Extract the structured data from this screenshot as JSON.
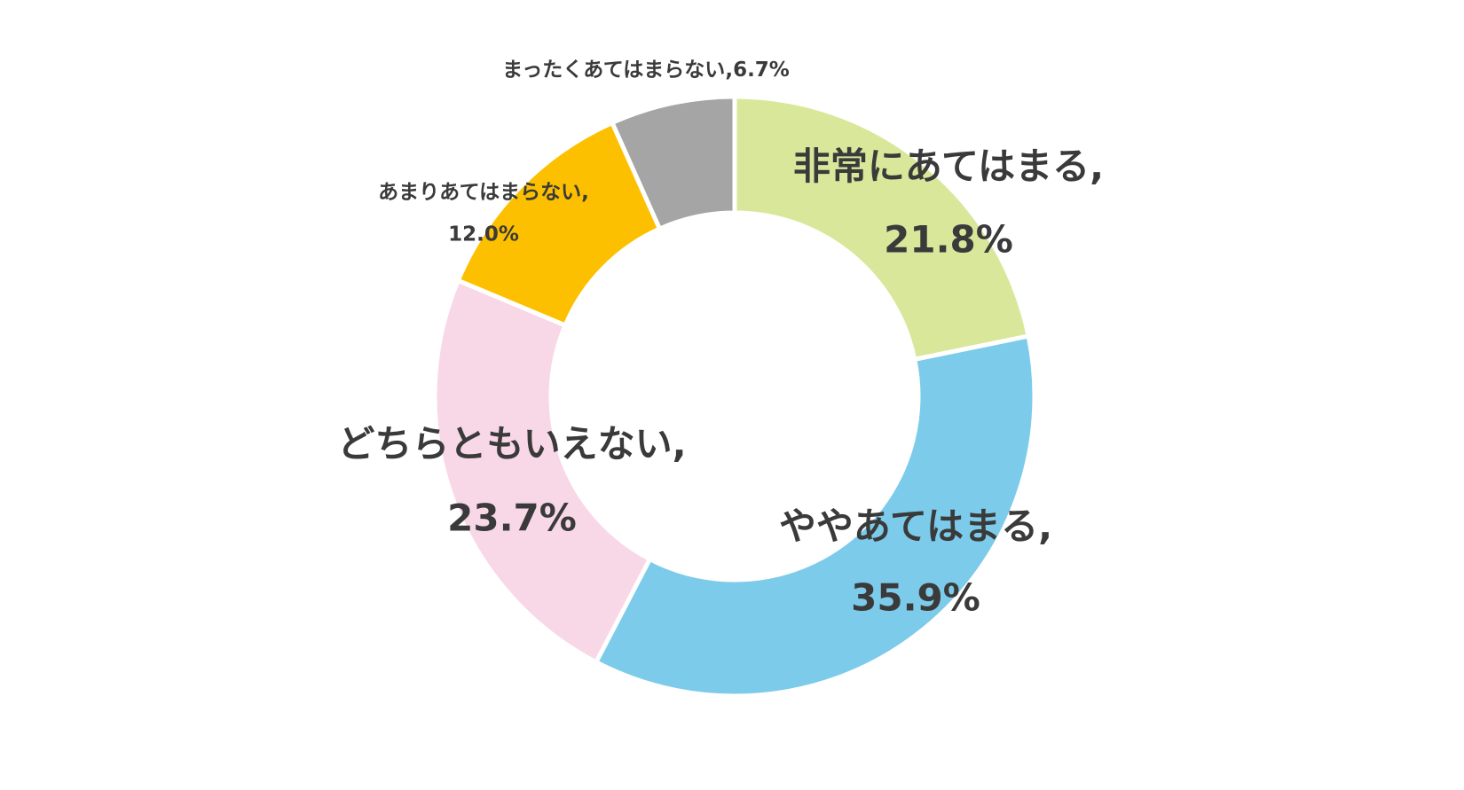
{
  "chart_data": {
    "type": "donut",
    "categories": [
      "非常にあてはまる",
      "ややあてはまる",
      "どちらともいえない",
      "あまりあてはまらない",
      "まったくあてはまらない"
    ],
    "values": [
      21.8,
      35.9,
      23.7,
      12.0,
      6.7
    ],
    "value_labels": [
      "21.8%",
      "35.9%",
      "23.7%",
      "12.0%",
      "6.7%"
    ],
    "label_separator": ",",
    "colors": [
      "#d9e79b",
      "#7ccbea",
      "#f8d8e7",
      "#fdc000",
      "#a5a5a5"
    ]
  }
}
